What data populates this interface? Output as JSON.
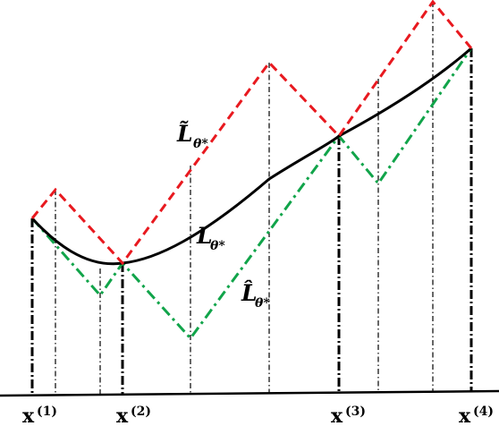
{
  "labels": {
    "L_tilde": {
      "symbol": "L̃",
      "subscript": "θ*"
    },
    "L": {
      "symbol": "L",
      "subscript": "θ*"
    },
    "L_hat": {
      "symbol": "L̂",
      "subscript": "θ*"
    }
  },
  "x_labels": [
    {
      "base": "x",
      "sup": "(1)"
    },
    {
      "base": "x",
      "sup": "(2)"
    },
    {
      "base": "x",
      "sup": "(3)"
    },
    {
      "base": "x",
      "sup": "(4)"
    }
  ],
  "colors": {
    "upper_bound": "#e8191f",
    "lower_bound": "#11a44a",
    "true_function": "#000000",
    "guides": "#000000"
  }
}
